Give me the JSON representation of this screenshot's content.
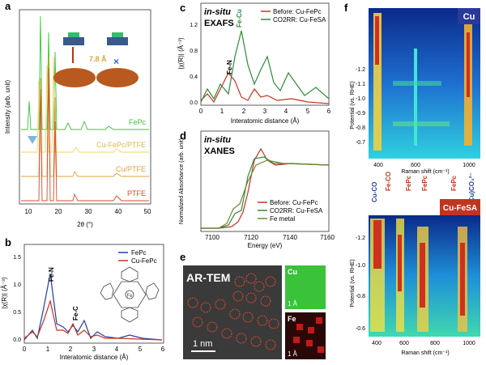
{
  "panel_letters": {
    "a": "a",
    "b": "b",
    "c": "c",
    "d": "d",
    "e": "e",
    "f": "f"
  },
  "panel_a": {
    "ylabel": "Intensity (arb. unit)",
    "xlabel": "2θ (°)",
    "xticks": [
      "10",
      "20",
      "30",
      "40",
      "50"
    ],
    "traces": [
      {
        "name": "FePc",
        "color": "#3cc43c"
      },
      {
        "name": "Cu-FePc/PTFE",
        "color": "#f2d66a"
      },
      {
        "name": "Cu/PTFE",
        "color": "#e0a23a"
      },
      {
        "name": "PTFE",
        "color": "#d94b2b"
      }
    ],
    "distance_label": "7.8 Å",
    "cross_label": "×"
  },
  "panel_b": {
    "ylabel": "|χ(R)| (Å⁻³)",
    "xlabel": "Interatomic distance (Å)",
    "xticks": [
      "0",
      "1",
      "2",
      "3",
      "4",
      "5",
      "6"
    ],
    "yticks": [
      "0.0",
      "0.5",
      "1.0",
      "1.5"
    ],
    "legend": [
      {
        "name": "FePc",
        "color": "#1f3fa8"
      },
      {
        "name": "Cu-FePc",
        "color": "#c83220"
      }
    ],
    "annotations": {
      "fe_n": "Fe-N",
      "fe_c": "Fe-C"
    }
  },
  "panel_c": {
    "title_line1": "in-situ",
    "title_line2": "EXAFS",
    "ylabel": "|χ(R)| (Å⁻³)",
    "xlabel": "Interatomic distance (Å)",
    "xticks": [
      "0",
      "1",
      "2",
      "3",
      "4",
      "5",
      "6"
    ],
    "yticks": [
      "0.0",
      "0.4",
      "0.8",
      "1.2"
    ],
    "legend": [
      {
        "name": "Before: Cu-FePc",
        "color": "#c83220"
      },
      {
        "name": "CO2RR: Cu-FeSA",
        "color": "#2e8b3a"
      }
    ],
    "annotations": {
      "fe_n": "Fe-N",
      "fe_cu": "Fe-Cu"
    }
  },
  "panel_d": {
    "title_line1": "in-situ",
    "title_line2": "XANES",
    "ylabel": "Normalized Absorbance (arb. unit)",
    "xlabel": "Energy (eV)",
    "xticks": [
      "7100",
      "7120",
      "7140",
      "7160"
    ],
    "legend": [
      {
        "name": "Before: Cu-FePc",
        "color": "#c83220"
      },
      {
        "name": "CO2RR: Cu-FeSA",
        "color": "#2e8b3a"
      },
      {
        "name": "Fe metal",
        "color": "#6b8a3a"
      }
    ]
  },
  "panel_e": {
    "title": "AR-TEM",
    "scale_main": "1 nm",
    "inset_cu_label": "Cu",
    "inset_fe_label": "Fe",
    "inset_scale": "1 Å"
  },
  "panel_f": {
    "ylabel": "Potential (vs. RHE)",
    "xlabel": "Raman shift (cm⁻¹)",
    "top": {
      "badge": "Cu",
      "badge_color": "#2a3a9a",
      "yticks": [
        "-1.2",
        "-1.1",
        "-1.0",
        "-0.9",
        "-0.8",
        "-0.7"
      ],
      "xticks": [
        "400",
        "600",
        "1000"
      ],
      "band_labels": [
        "Cu-CO",
        "(Cu)CO₃²⁻"
      ]
    },
    "bottom": {
      "badge": "Cu-FeSA",
      "badge_color": "#c0351f",
      "yticks": [
        "-1.2",
        "-1.0",
        "-0.8",
        "-0.6"
      ],
      "xticks": [
        "400",
        "600",
        "800",
        "1000"
      ],
      "band_labels": [
        "Fe-CO",
        "FePc",
        "FePc",
        "FePc"
      ]
    }
  }
}
